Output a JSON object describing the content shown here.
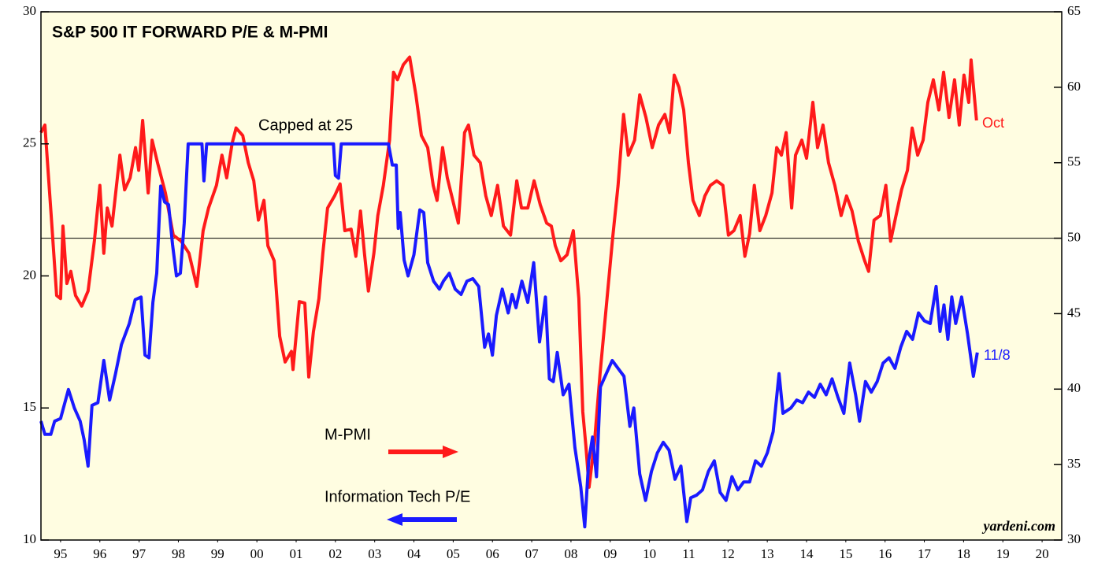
{
  "chart_data": {
    "type": "line",
    "title": "S&P 500 IT FORWARD P/E & M-PMI",
    "annotations": {
      "cap": "Capped at 25",
      "pmi_last": "Oct",
      "pe_last": "11/8",
      "source": "yardeni.com"
    },
    "xlim": [
      1995,
      2021
    ],
    "xticks": [
      {
        "value": 1995.5,
        "label": "95"
      },
      {
        "value": 1996.5,
        "label": "96"
      },
      {
        "value": 1997.5,
        "label": "97"
      },
      {
        "value": 1998.5,
        "label": "98"
      },
      {
        "value": 1999.5,
        "label": "99"
      },
      {
        "value": 2000.5,
        "label": "00"
      },
      {
        "value": 2001.5,
        "label": "01"
      },
      {
        "value": 2002.5,
        "label": "02"
      },
      {
        "value": 2003.5,
        "label": "03"
      },
      {
        "value": 2004.5,
        "label": "04"
      },
      {
        "value": 2005.5,
        "label": "05"
      },
      {
        "value": 2006.5,
        "label": "06"
      },
      {
        "value": 2007.5,
        "label": "07"
      },
      {
        "value": 2008.5,
        "label": "08"
      },
      {
        "value": 2009.5,
        "label": "09"
      },
      {
        "value": 2010.5,
        "label": "10"
      },
      {
        "value": 2011.5,
        "label": "11"
      },
      {
        "value": 2012.5,
        "label": "12"
      },
      {
        "value": 2013.5,
        "label": "13"
      },
      {
        "value": 2014.5,
        "label": "14"
      },
      {
        "value": 2015.5,
        "label": "15"
      },
      {
        "value": 2016.5,
        "label": "16"
      },
      {
        "value": 2017.5,
        "label": "17"
      },
      {
        "value": 2018.5,
        "label": "18"
      },
      {
        "value": 2019.5,
        "label": "19"
      },
      {
        "value": 2020.5,
        "label": "20"
      }
    ],
    "ylim": [
      10,
      30
    ],
    "yticks": [
      10,
      15,
      20,
      25,
      30
    ],
    "y2lim": [
      30,
      65
    ],
    "y2ticks": [
      30,
      35,
      40,
      45,
      50,
      55,
      60,
      65
    ],
    "hline": {
      "value": 50,
      "axis": "y2"
    },
    "series": [
      {
        "name": "M-PMI",
        "color": "#ff1a1a",
        "axis": "y2",
        "x": [
          1995.0,
          1995.1,
          1995.26,
          1995.4,
          1995.5,
          1995.56,
          1995.66,
          1995.76,
          1995.88,
          1996.04,
          1996.2,
          1996.36,
          1996.5,
          1996.6,
          1996.69,
          1996.81,
          1997.01,
          1997.13,
          1997.27,
          1997.41,
          1997.49,
          1997.59,
          1997.73,
          1997.83,
          1997.97,
          1998.17,
          1998.37,
          1998.57,
          1998.77,
          1998.97,
          1999.13,
          1999.27,
          1999.47,
          1999.61,
          1999.73,
          1999.87,
          1999.97,
          2000.14,
          2000.28,
          2000.42,
          2000.54,
          2000.68,
          2000.78,
          2000.94,
          2001.08,
          2001.22,
          2001.38,
          2001.42,
          2001.58,
          2001.72,
          2001.82,
          2001.94,
          2002.08,
          2002.18,
          2002.3,
          2002.48,
          2002.62,
          2002.74,
          2002.9,
          2003.02,
          2003.14,
          2003.24,
          2003.34,
          2003.48,
          2003.58,
          2003.72,
          2003.88,
          2003.98,
          2004.08,
          2004.23,
          2004.39,
          2004.55,
          2004.69,
          2004.85,
          2004.99,
          2005.09,
          2005.23,
          2005.35,
          2005.49,
          2005.63,
          2005.79,
          2005.89,
          2006.03,
          2006.19,
          2006.33,
          2006.47,
          2006.63,
          2006.78,
          2006.96,
          2007.12,
          2007.24,
          2007.4,
          2007.56,
          2007.72,
          2007.88,
          2008.0,
          2008.1,
          2008.24,
          2008.4,
          2008.56,
          2008.7,
          2008.8,
          2008.88,
          2008.96,
          2009.1,
          2009.24,
          2009.4,
          2009.56,
          2009.7,
          2009.84,
          2009.96,
          2010.12,
          2010.25,
          2010.41,
          2010.57,
          2010.73,
          2010.89,
          2011.01,
          2011.13,
          2011.25,
          2011.37,
          2011.49,
          2011.61,
          2011.77,
          2011.91,
          2012.05,
          2012.21,
          2012.37,
          2012.51,
          2012.65,
          2012.81,
          2012.93,
          2013.05,
          2013.17,
          2013.31,
          2013.46,
          2013.62,
          2013.74,
          2013.86,
          2013.98,
          2014.12,
          2014.22,
          2014.38,
          2014.5,
          2014.66,
          2014.78,
          2014.92,
          2015.06,
          2015.22,
          2015.38,
          2015.52,
          2015.66,
          2015.82,
          2015.98,
          2016.08,
          2016.22,
          2016.38,
          2016.52,
          2016.64,
          2016.78,
          2016.92,
          2017.07,
          2017.19,
          2017.33,
          2017.47,
          2017.59,
          2017.73,
          2017.87,
          2017.99,
          2018.13,
          2018.27,
          2018.39,
          2018.51,
          2018.63,
          2018.69,
          2018.83
        ],
        "values": [
          57.0,
          57.5,
          51.5,
          46.2,
          46.0,
          50.8,
          47.0,
          47.8,
          46.2,
          45.5,
          46.5,
          49.8,
          53.5,
          49.0,
          52.0,
          50.8,
          55.5,
          53.2,
          54.0,
          56.0,
          54.5,
          57.8,
          53.0,
          56.5,
          55.0,
          53.0,
          50.2,
          49.8,
          49.0,
          46.8,
          50.5,
          52.0,
          53.5,
          55.5,
          54.0,
          56.3,
          57.3,
          56.8,
          55.0,
          53.8,
          51.2,
          52.5,
          49.5,
          48.5,
          43.5,
          41.8,
          42.5,
          41.3,
          45.8,
          45.7,
          40.8,
          43.8,
          46.0,
          49.0,
          52.0,
          52.8,
          53.6,
          50.5,
          50.6,
          48.8,
          51.8,
          49.0,
          46.5,
          49.0,
          51.5,
          53.5,
          56.5,
          61.0,
          60.5,
          61.5,
          62.0,
          59.5,
          56.8,
          56.0,
          53.5,
          52.5,
          56.0,
          54.0,
          52.5,
          51.0,
          57.0,
          57.5,
          55.5,
          55.0,
          52.8,
          51.5,
          53.5,
          50.8,
          50.2,
          53.8,
          52.0,
          52.0,
          53.8,
          52.2,
          51.0,
          50.8,
          49.5,
          48.5,
          48.9,
          50.5,
          46.0,
          38.5,
          36.2,
          33.5,
          36.5,
          41.0,
          45.5,
          50.0,
          53.5,
          58.2,
          55.5,
          56.5,
          59.5,
          58.0,
          56.0,
          57.5,
          58.2,
          57.0,
          60.8,
          60.0,
          58.5,
          55.0,
          52.5,
          51.5,
          52.8,
          53.5,
          53.8,
          53.5,
          50.2,
          50.5,
          51.5,
          48.8,
          50.3,
          53.5,
          50.5,
          51.5,
          53.0,
          56.0,
          55.5,
          57.0,
          52.0,
          55.5,
          56.5,
          55.3,
          59.0,
          56.0,
          57.5,
          55.0,
          53.5,
          51.5,
          52.8,
          51.8,
          49.8,
          48.5,
          47.8,
          51.2,
          51.5,
          53.5,
          49.8,
          51.5,
          53.2,
          54.5,
          57.3,
          55.5,
          56.5,
          59.0,
          60.5,
          58.5,
          61.0,
          58.0,
          60.5,
          57.5,
          60.8,
          59.0,
          61.8,
          57.8
        ]
      },
      {
        "name": "Information Tech P/E",
        "color": "#1a1aff",
        "x": [
          1995.0,
          1995.1,
          1995.25,
          1995.35,
          1995.5,
          1995.7,
          1995.85,
          1996.0,
          1996.1,
          1996.2,
          1996.3,
          1996.45,
          1996.6,
          1996.75,
          1996.9,
          1997.05,
          1997.25,
          1997.4,
          1997.55,
          1997.65,
          1997.75,
          1997.85,
          1997.95,
          1998.05,
          1998.15,
          1998.25,
          1998.35,
          1998.45,
          1998.55,
          1998.65,
          1998.75,
          1999.1,
          1999.15,
          1999.22,
          2002.45,
          2002.5,
          2002.58,
          2002.65,
          2003.85,
          2003.95,
          2004.05,
          2004.1,
          2004.15,
          2004.25,
          2004.35,
          2004.5,
          2004.65,
          2004.75,
          2004.85,
          2005.0,
          2005.15,
          2005.25,
          2005.4,
          2005.55,
          2005.7,
          2005.85,
          2006.0,
          2006.15,
          2006.3,
          2006.4,
          2006.5,
          2006.6,
          2006.75,
          2006.9,
          2007.0,
          2007.1,
          2007.25,
          2007.4,
          2007.55,
          2007.7,
          2007.85,
          2007.95,
          2008.05,
          2008.15,
          2008.3,
          2008.45,
          2008.6,
          2008.75,
          2008.85,
          2008.95,
          2009.05,
          2009.15,
          2009.25,
          2009.4,
          2009.55,
          2009.7,
          2009.85,
          2010.0,
          2010.1,
          2010.25,
          2010.4,
          2010.55,
          2010.7,
          2010.85,
          2011.0,
          2011.15,
          2011.3,
          2011.45,
          2011.55,
          2011.7,
          2011.85,
          2012.0,
          2012.15,
          2012.3,
          2012.45,
          2012.6,
          2012.75,
          2012.9,
          2013.05,
          2013.2,
          2013.35,
          2013.5,
          2013.65,
          2013.8,
          2013.9,
          2014.1,
          2014.25,
          2014.4,
          2014.55,
          2014.7,
          2014.85,
          2015.0,
          2015.15,
          2015.3,
          2015.45,
          2015.6,
          2015.75,
          2015.85,
          2016.0,
          2016.15,
          2016.3,
          2016.45,
          2016.6,
          2016.75,
          2016.9,
          2017.05,
          2017.2,
          2017.35,
          2017.5,
          2017.65,
          2017.8,
          2017.9,
          2018.0,
          2018.1,
          2018.2,
          2018.3,
          2018.45,
          2018.6,
          2018.75,
          2018.85
        ],
        "values": [
          14.5,
          14.0,
          14.0,
          14.5,
          14.6,
          15.7,
          15.0,
          14.5,
          13.8,
          12.8,
          15.1,
          15.2,
          16.8,
          15.3,
          16.3,
          17.4,
          18.2,
          19.1,
          19.2,
          17.0,
          16.9,
          19.0,
          20.1,
          23.4,
          22.8,
          22.7,
          21.2,
          20.0,
          20.1,
          22.0,
          25,
          25,
          23.6,
          25,
          25,
          23.8,
          23.7,
          25,
          25,
          24.2,
          24.2,
          21.8,
          22.4,
          20.6,
          20.0,
          20.8,
          22.5,
          22.4,
          20.5,
          19.8,
          19.5,
          19.8,
          20.1,
          19.5,
          19.3,
          19.8,
          19.9,
          19.6,
          17.3,
          17.8,
          17.0,
          18.5,
          19.5,
          18.6,
          19.3,
          18.8,
          19.8,
          19.0,
          20.5,
          17.5,
          19.2,
          16.1,
          16.0,
          17.1,
          15.5,
          15.9,
          13.5,
          12.0,
          10.5,
          13.0,
          13.9,
          12.4,
          15.8,
          16.3,
          16.8,
          16.5,
          16.2,
          14.3,
          15.0,
          12.5,
          11.5,
          12.6,
          13.3,
          13.7,
          13.4,
          12.3,
          12.8,
          10.7,
          11.6,
          11.7,
          11.9,
          12.6,
          13.0,
          11.8,
          11.5,
          12.4,
          11.9,
          12.2,
          12.2,
          13.0,
          12.8,
          13.3,
          14.1,
          16.3,
          14.8,
          15.0,
          15.3,
          15.2,
          15.6,
          15.4,
          15.9,
          15.5,
          16.1,
          15.4,
          14.8,
          16.7,
          15.5,
          14.5,
          16.0,
          15.6,
          16.0,
          16.7,
          16.9,
          16.5,
          17.3,
          17.9,
          17.6,
          18.6,
          18.3,
          18.2,
          19.6,
          17.9,
          18.9,
          17.6,
          19.2,
          18.2,
          19.2,
          17.8,
          16.2,
          17.1
        ]
      }
    ]
  }
}
